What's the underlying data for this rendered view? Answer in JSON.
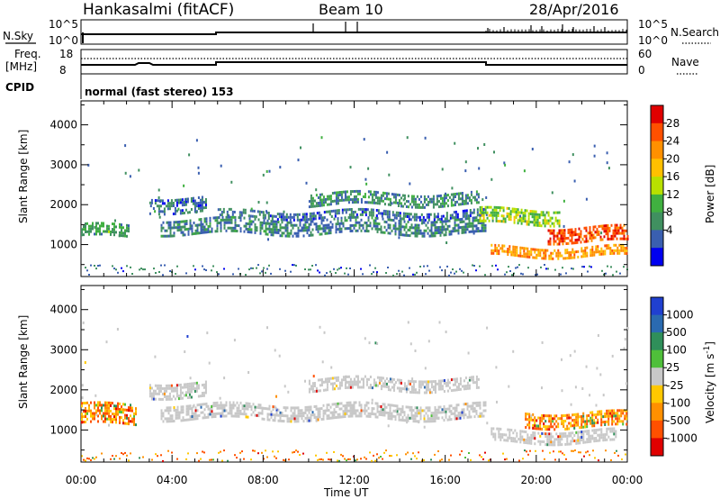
{
  "header": {
    "station": "Hankasalmi (fitACF)",
    "beam": "Beam 10",
    "date": "28/Apr/2016"
  },
  "status_panels": {
    "nsky_label": "N.Sky",
    "nsky_ticks": [
      "10^5",
      "10^0"
    ],
    "nsearch_label": "N.Search",
    "nsearch_ticks": [
      "10^5",
      "10^0"
    ],
    "freq_label_1": "Freq.",
    "freq_label_2": "[MHz]",
    "freq_ticks": [
      "18",
      "8"
    ],
    "nave_label": "Nave",
    "nave_ticks": [
      "60",
      "0"
    ],
    "cpid_label": "CPID",
    "cpid_text": "normal (fast stereo) 153"
  },
  "colorbars": {
    "power": {
      "label": "Power [dB]",
      "ticks": [
        "28",
        "24",
        "20",
        "16",
        "12",
        "8",
        "4"
      ],
      "colors": [
        "#e00000",
        "#ff5000",
        "#ff9000",
        "#ffc000",
        "#b8e000",
        "#40b040",
        "#409060",
        "#3a5fb0",
        "#0000f0"
      ]
    },
    "velocity": {
      "label": "Velocity [m s",
      "label_exp": "-1",
      "label_close": "]",
      "ticks": [
        "1000",
        "500",
        "100",
        "25",
        "-25",
        "-100",
        "-500",
        "-1000"
      ],
      "colors": [
        "#2040d0",
        "#2a6ab0",
        "#2f8f5a",
        "#4fbf3a",
        "#c8c8c8",
        "#ffc800",
        "#ff9000",
        "#ff5000",
        "#e00000"
      ]
    }
  },
  "chart_data": [
    {
      "type": "heatmap",
      "panel": "power",
      "title": "Beam 10",
      "ylabel": "Slant Range [km]",
      "xlabel": "Time UT",
      "xlim": [
        0,
        24
      ],
      "ylim": [
        200,
        4600
      ],
      "x_ticks": [
        "00:00",
        "04:00",
        "08:00",
        "12:00",
        "16:00",
        "20:00",
        "00:00"
      ],
      "y_ticks": [
        "1000",
        "2000",
        "3000",
        "4000"
      ],
      "bands": [
        {
          "t0": 0.0,
          "t1": 2.1,
          "r_start": 1200,
          "r_end": 1500,
          "value": 10
        },
        {
          "t0": 3.0,
          "t1": 5.5,
          "r_start": 1850,
          "r_end": 2200,
          "value": 6
        },
        {
          "t0": 3.5,
          "t1": 17.8,
          "r_start": 1300,
          "r_end": 1650,
          "value": 7
        },
        {
          "t0": 6.0,
          "t1": 17.8,
          "r_start": 1700,
          "r_end": 1850,
          "value": 6
        },
        {
          "t0": 10.0,
          "t1": 17.5,
          "r_start": 2000,
          "r_end": 2300,
          "value": 8
        },
        {
          "t0": 17.5,
          "t1": 21.0,
          "r_start": 1550,
          "r_end": 1900,
          "value": 14
        },
        {
          "t0": 18.0,
          "t1": 24.0,
          "r_start": 700,
          "r_end": 950,
          "value": 22
        },
        {
          "t0": 20.5,
          "t1": 24.0,
          "r_start": 1050,
          "r_end": 1450,
          "value": 27
        }
      ]
    },
    {
      "type": "heatmap",
      "panel": "velocity",
      "ylabel": "Slant Range [km]",
      "xlabel": "Time UT",
      "xlim": [
        0,
        24
      ],
      "ylim": [
        200,
        4600
      ],
      "x_ticks": [
        "00:00",
        "04:00",
        "08:00",
        "12:00",
        "16:00",
        "20:00",
        "00:00"
      ],
      "y_ticks": [
        "1000",
        "2000",
        "3000",
        "4000"
      ],
      "bands": [
        {
          "t0": 0.0,
          "t1": 2.4,
          "r_start": 1150,
          "r_end": 1650,
          "value": -300
        },
        {
          "t0": 3.0,
          "t1": 5.5,
          "r_start": 1850,
          "r_end": 2200,
          "value": 0
        },
        {
          "t0": 3.5,
          "t1": 17.8,
          "r_start": 1300,
          "r_end": 1650,
          "value": 0
        },
        {
          "t0": 10.0,
          "t1": 17.5,
          "r_start": 2000,
          "r_end": 2300,
          "value": 0
        },
        {
          "t0": 18.0,
          "t1": 23.5,
          "r_start": 700,
          "r_end": 1000,
          "value": 0
        },
        {
          "t0": 19.5,
          "t1": 24.0,
          "r_start": 1100,
          "r_end": 1450,
          "value": -200
        }
      ]
    }
  ]
}
